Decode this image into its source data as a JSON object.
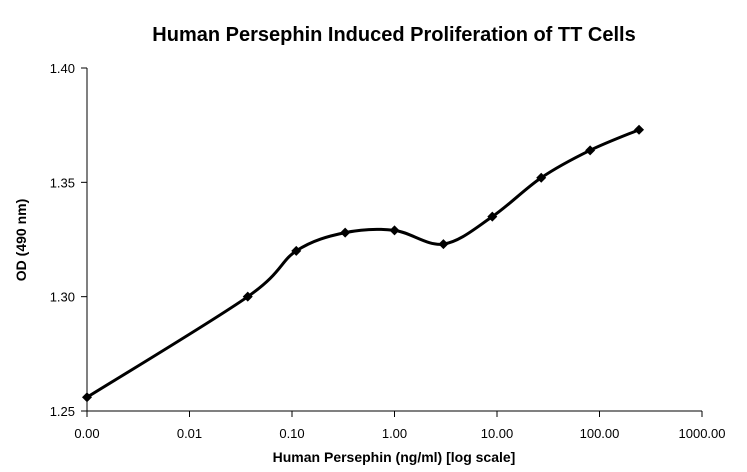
{
  "chart_data": {
    "type": "line",
    "title": "Human Persephin Induced Proliferation of TT Cells",
    "xlabel": "Human Persephin (ng/ml) [log scale]",
    "ylabel": "OD (490 nm)",
    "x_scale": "log",
    "x_ticks": [
      0.001,
      0.01,
      0.1,
      1,
      10,
      100,
      1000
    ],
    "x_tick_labels": [
      "0.00",
      "0.01",
      "0.10",
      "1.00",
      "10.00",
      "100.00",
      "1000.00"
    ],
    "ylim": [
      1.25,
      1.4
    ],
    "y_ticks": [
      1.25,
      1.3,
      1.35,
      1.4
    ],
    "y_tick_labels": [
      "1.25",
      "1.30",
      "1.35",
      "1.40"
    ],
    "grid": false,
    "legend": "none",
    "series": [
      {
        "marker": "diamond",
        "smooth": true,
        "color": "#000000",
        "x": [
          0.001,
          0.037,
          0.11,
          0.33,
          1.0,
          3.0,
          9.0,
          27.0,
          81.0,
          243.0
        ],
        "y": [
          1.256,
          1.3,
          1.32,
          1.328,
          1.329,
          1.323,
          1.335,
          1.352,
          1.364,
          1.373
        ]
      }
    ]
  }
}
